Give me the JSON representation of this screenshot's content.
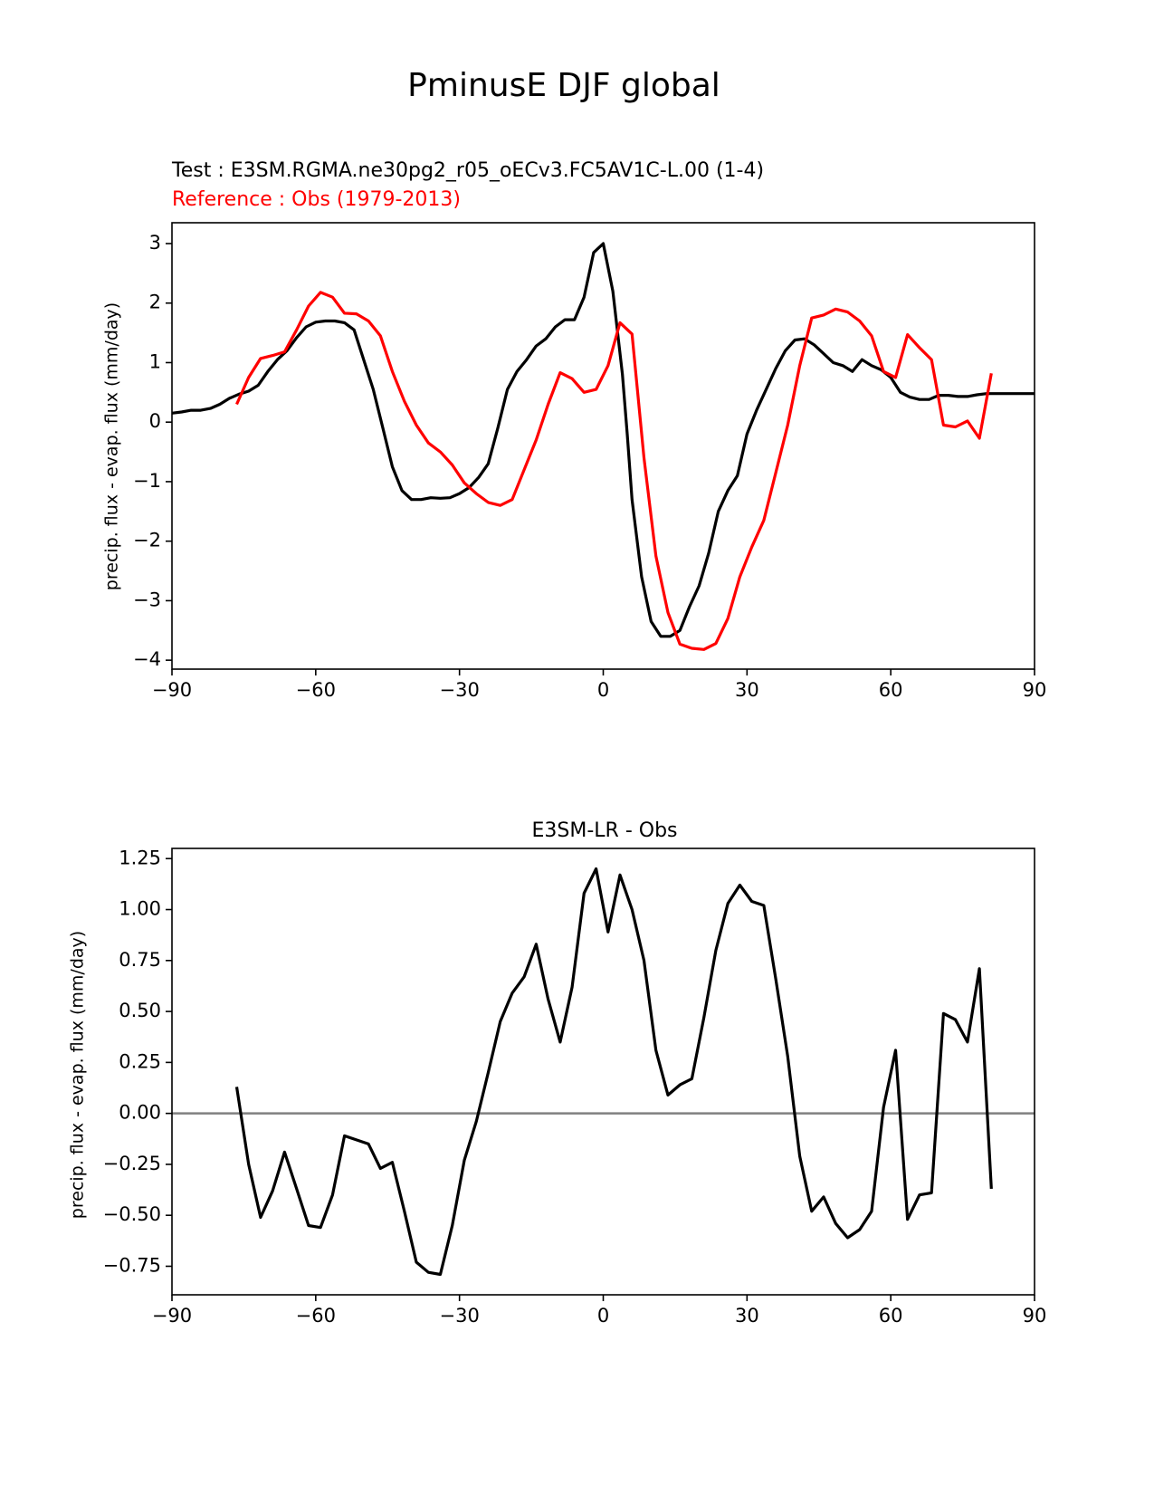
{
  "figure": {
    "title": "PminusE DJF global"
  },
  "chart_data": [
    {
      "type": "line",
      "subtitle_test": "Test : E3SM.RGMA.ne30pg2_r05_oECv3.FC5AV1C-L.00 (1-4)",
      "subtitle_ref": "Reference : Obs (1979-2013)",
      "xlabel": "",
      "ylabel": "precip. flux - evap. flux (mm/day)",
      "xlim": [
        -90,
        90
      ],
      "ylim": [
        -4.15,
        3.35
      ],
      "xticks": [
        -90,
        -60,
        -30,
        0,
        30,
        60,
        90
      ],
      "xtick_labels": [
        "−90",
        "−60",
        "−30",
        "0",
        "30",
        "60",
        "90"
      ],
      "yticks": [
        3,
        2,
        1,
        0,
        -1,
        -2,
        -3,
        -4
      ],
      "ytick_labels": [
        "3",
        "2",
        "1",
        "0",
        "−1",
        "−2",
        "−3",
        "−4"
      ],
      "series": [
        {
          "name": "Test",
          "color": "#000000",
          "x": [
            -90,
            -88,
            -86,
            -84,
            -82,
            -80,
            -78,
            -76,
            -74,
            -72,
            -70,
            -68,
            -66,
            -64,
            -62,
            -60,
            -58,
            -56,
            -54,
            -52,
            -50,
            -48,
            -46,
            -44,
            -42,
            -40,
            -38,
            -36,
            -34,
            -32,
            -30,
            -28,
            -26,
            -24,
            -22,
            -20,
            -18,
            -16,
            -14,
            -12,
            -10,
            -8,
            -6,
            -4,
            -2,
            0,
            2,
            3,
            4,
            5,
            6,
            8,
            10,
            12,
            14,
            16,
            18,
            20,
            22,
            24,
            26,
            28,
            30,
            32,
            34,
            36,
            38,
            40,
            42,
            44,
            46,
            48,
            50,
            52,
            54,
            56,
            58,
            60,
            62,
            64,
            66,
            68,
            70,
            72,
            74,
            76,
            78,
            80,
            82,
            84,
            86,
            88,
            90
          ],
          "y": [
            0.15,
            0.17,
            0.2,
            0.2,
            0.23,
            0.3,
            0.4,
            0.47,
            0.52,
            0.62,
            0.85,
            1.05,
            1.2,
            1.42,
            1.6,
            1.68,
            1.7,
            1.7,
            1.67,
            1.55,
            1.05,
            0.55,
            -0.1,
            -0.75,
            -1.15,
            -1.3,
            -1.3,
            -1.27,
            -1.28,
            -1.27,
            -1.2,
            -1.1,
            -0.93,
            -0.7,
            -0.1,
            0.55,
            0.85,
            1.05,
            1.28,
            1.4,
            1.6,
            1.72,
            1.72,
            2.1,
            2.85,
            3.0,
            2.2,
            1.5,
            0.8,
            -0.2,
            -1.3,
            -2.6,
            -3.35,
            -3.6,
            -3.6,
            -3.5,
            -3.1,
            -2.75,
            -2.2,
            -1.5,
            -1.15,
            -0.9,
            -0.2,
            0.2,
            0.55,
            0.9,
            1.2,
            1.38,
            1.4,
            1.3,
            1.15,
            1.0,
            0.95,
            0.85,
            1.05,
            0.95,
            0.88,
            0.75,
            0.5,
            0.42,
            0.38,
            0.38,
            0.45,
            0.45,
            0.43,
            0.43,
            0.46,
            0.48,
            0.48,
            0.48,
            0.48,
            0.48,
            0.48
          ]
        },
        {
          "name": "Reference",
          "color": "#ff0000",
          "x": [
            -76.5,
            -74,
            -71.5,
            -69,
            -66.5,
            -64,
            -61.5,
            -59,
            -56.5,
            -54,
            -51.5,
            -49,
            -46.5,
            -44,
            -41.5,
            -39,
            -36.5,
            -34,
            -31.5,
            -29,
            -26.5,
            -24,
            -21.5,
            -19,
            -16.5,
            -14,
            -11.5,
            -9,
            -6.5,
            -4,
            -1.5,
            1,
            3.5,
            6,
            8.5,
            11,
            13.5,
            16,
            18.5,
            21,
            23.5,
            26,
            28.5,
            31,
            33.5,
            36,
            38.5,
            41,
            43.5,
            46,
            48.5,
            51,
            53.5,
            56,
            58.5,
            61,
            63.5,
            66,
            68.5,
            71,
            73.5,
            76,
            78.5,
            81
          ],
          "y": [
            0.3,
            0.75,
            1.07,
            1.12,
            1.18,
            1.55,
            1.95,
            2.18,
            2.1,
            1.83,
            1.82,
            1.7,
            1.45,
            0.85,
            0.35,
            -0.05,
            -0.35,
            -0.5,
            -0.72,
            -1.02,
            -1.2,
            -1.35,
            -1.4,
            -1.3,
            -0.8,
            -0.3,
            0.3,
            0.83,
            0.73,
            0.5,
            0.55,
            0.95,
            1.67,
            1.48,
            -0.6,
            -2.25,
            -3.2,
            -3.73,
            -3.8,
            -3.82,
            -3.72,
            -3.3,
            -2.6,
            -2.1,
            -1.65,
            -0.85,
            -0.05,
            0.95,
            1.75,
            1.8,
            1.9,
            1.85,
            1.7,
            1.45,
            0.85,
            0.75,
            1.47,
            1.25,
            1.05,
            -0.05,
            -0.08,
            0.02,
            -0.27,
            0.82
          ]
        }
      ]
    },
    {
      "type": "line",
      "title": "E3SM-LR - Obs",
      "xlabel": "",
      "ylabel": "precip. flux - evap. flux (mm/day)",
      "xlim": [
        -90,
        90
      ],
      "ylim": [
        -0.89,
        1.3
      ],
      "xticks": [
        -90,
        -60,
        -30,
        0,
        30,
        60,
        90
      ],
      "xtick_labels": [
        "−90",
        "−60",
        "−30",
        "0",
        "30",
        "60",
        "90"
      ],
      "yticks": [
        1.25,
        1.0,
        0.75,
        0.5,
        0.25,
        0.0,
        -0.25,
        -0.5,
        -0.75
      ],
      "ytick_labels": [
        "1.25",
        "1.00",
        "0.75",
        "0.50",
        "0.25",
        "0.00",
        "−0.25",
        "−0.50",
        "−0.75"
      ],
      "zero_line_color": "#808080",
      "series": [
        {
          "name": "E3SM-LR - Obs",
          "color": "#000000",
          "x": [
            -76.5,
            -74,
            -71.5,
            -69,
            -66.5,
            -64,
            -61.5,
            -59,
            -56.5,
            -54,
            -51.5,
            -49,
            -46.5,
            -44,
            -41.5,
            -39,
            -36.5,
            -34,
            -31.5,
            -29,
            -26.5,
            -24,
            -21.5,
            -19,
            -16.5,
            -14,
            -11.5,
            -9,
            -6.5,
            -4,
            -1.5,
            1,
            3.5,
            6,
            8.5,
            11,
            13.5,
            16,
            18.5,
            21,
            23.5,
            26,
            28.5,
            31,
            33.5,
            36,
            38.5,
            41,
            43.5,
            46,
            48.5,
            51,
            53.5,
            56,
            58.5,
            61,
            63.5,
            66,
            68.5,
            71,
            73.5,
            76,
            78.5,
            81
          ],
          "y": [
            0.13,
            -0.25,
            -0.51,
            -0.38,
            -0.19,
            -0.37,
            -0.55,
            -0.56,
            -0.4,
            -0.11,
            -0.13,
            -0.15,
            -0.27,
            -0.24,
            -0.48,
            -0.73,
            -0.78,
            -0.79,
            -0.55,
            -0.23,
            -0.04,
            0.2,
            0.45,
            0.59,
            0.67,
            0.83,
            0.56,
            0.35,
            0.62,
            1.08,
            1.2,
            0.89,
            1.17,
            1.0,
            0.75,
            0.31,
            0.09,
            0.14,
            0.17,
            0.47,
            0.8,
            1.03,
            1.12,
            1.04,
            1.02,
            0.66,
            0.28,
            -0.21,
            -0.48,
            -0.41,
            -0.54,
            -0.61,
            -0.57,
            -0.48,
            0.03,
            0.31,
            -0.52,
            -0.4,
            -0.39,
            0.49,
            0.46,
            0.35,
            0.71,
            -0.37
          ]
        }
      ]
    }
  ]
}
